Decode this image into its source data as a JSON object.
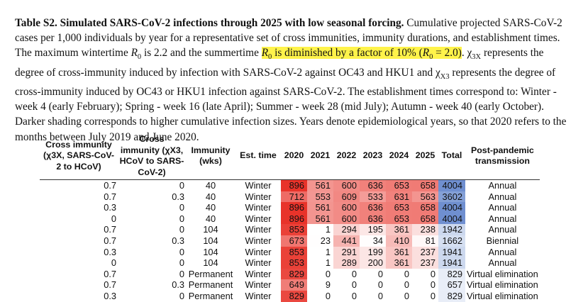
{
  "caption": {
    "title": "Table S2. Simulated SARS-CoV-2 infections through 2025 with low seasonal forcing.",
    "p1": " Cumulative projected SARS-CoV-2 cases per 1,000 individuals by year for a representative set of cross immunities, immunity durations, and establishment times. The maximum wintertime ",
    "r0a": "R",
    "r0a_sub": "0",
    "p2": " is 2.2 and the summertime ",
    "hl_r": "R",
    "hl_r_sub": "0",
    "hl_text": " is diminished by a factor of 10% (",
    "hl_r2": "R",
    "hl_r2_sub": "0",
    "hl_end": " = 2.0)",
    "p3": ". χ",
    "chi1_sub": "3X",
    "p4": " represents the degree of cross-immunity induced by infection with SARS-CoV-2 against OC43 and HKU1 and χ",
    "chi2_sub": "X3",
    "p5": " represents the degree of cross-immunity induced by OC43 or HKU1 infection against SARS-CoV-2. The establishment times correspond to: Winter - week 4 (early February); Spring - week 16 (late April); Summer - week 28 (mid July); Autumn - week 40 (early October). Darker shading corresponds to higher cumulative infection sizes. Years denote epidemiological years, so that 2020 refers to the months between July 2019 and June 2020."
  },
  "table": {
    "headers": {
      "cross3x": "Cross immunity (χ3X, SARS-CoV-2 to HCoV)",
      "crossx3": "Cross immunity (χX3, HCoV to SARS-CoV-2)",
      "immunity": "Immunity (wks)",
      "est_time": "Est. time",
      "y2020": "2020",
      "y2021": "2021",
      "y2022": "2022",
      "y2023": "2023",
      "y2024": "2024",
      "y2025": "2025",
      "total": "Total",
      "post": "Post-pandemic transmission"
    },
    "rows": [
      {
        "c3x": "0.7",
        "cx3": "0",
        "imm": "40",
        "est": "Winter",
        "y": [
          "896",
          "561",
          "600",
          "636",
          "653",
          "658"
        ],
        "total": "4004",
        "post": "Annual"
      },
      {
        "c3x": "0.7",
        "cx3": "0.3",
        "imm": "40",
        "est": "Winter",
        "y": [
          "712",
          "553",
          "609",
          "533",
          "631",
          "563"
        ],
        "total": "3602",
        "post": "Annual"
      },
      {
        "c3x": "0.3",
        "cx3": "0",
        "imm": "40",
        "est": "Winter",
        "y": [
          "896",
          "561",
          "600",
          "636",
          "653",
          "658"
        ],
        "total": "4004",
        "post": "Annual"
      },
      {
        "c3x": "0",
        "cx3": "0",
        "imm": "40",
        "est": "Winter",
        "y": [
          "896",
          "561",
          "600",
          "636",
          "653",
          "658"
        ],
        "total": "4004",
        "post": "Annual"
      },
      {
        "c3x": "0.7",
        "cx3": "0",
        "imm": "104",
        "est": "Winter",
        "y": [
          "853",
          "1",
          "294",
          "195",
          "361",
          "238"
        ],
        "total": "1942",
        "post": "Annual"
      },
      {
        "c3x": "0.7",
        "cx3": "0.3",
        "imm": "104",
        "est": "Winter",
        "y": [
          "673",
          "23",
          "441",
          "34",
          "410",
          "81"
        ],
        "total": "1662",
        "post": "Biennial"
      },
      {
        "c3x": "0.3",
        "cx3": "0",
        "imm": "104",
        "est": "Winter",
        "y": [
          "853",
          "1",
          "291",
          "199",
          "361",
          "237"
        ],
        "total": "1941",
        "post": "Annual"
      },
      {
        "c3x": "0",
        "cx3": "0",
        "imm": "104",
        "est": "Winter",
        "y": [
          "853",
          "1",
          "289",
          "200",
          "361",
          "237"
        ],
        "total": "1941",
        "post": "Annual"
      },
      {
        "c3x": "0.7",
        "cx3": "0",
        "imm": "Permanent",
        "est": "Winter",
        "y": [
          "829",
          "0",
          "0",
          "0",
          "0",
          "0"
        ],
        "total": "829",
        "post": "Virtual elimination"
      },
      {
        "c3x": "0.7",
        "cx3": "0.3",
        "imm": "Permanent",
        "est": "Winter",
        "y": [
          "649",
          "9",
          "0",
          "0",
          "0",
          "0"
        ],
        "total": "657",
        "post": "Virtual elimination"
      },
      {
        "c3x": "0.3",
        "cx3": "0",
        "imm": "Permanent",
        "est": "Winter",
        "y": [
          "829",
          "0",
          "0",
          "0",
          "0",
          "0"
        ],
        "total": "829",
        "post": "Virtual elimination"
      }
    ]
  },
  "colors": {
    "heat_high": "#e8332a",
    "heat_low": "#ffffff",
    "total_high": "#6f8fd0",
    "total_low": "#ffffff"
  }
}
